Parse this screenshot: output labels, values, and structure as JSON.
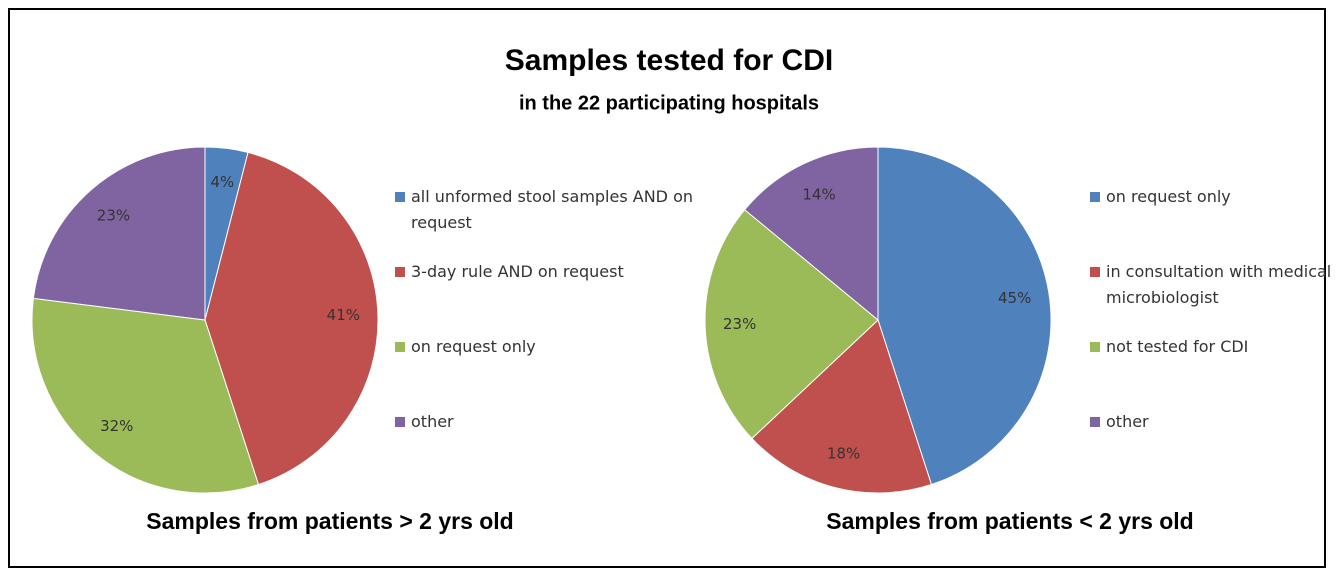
{
  "title": "Samples tested for CDI",
  "subtitle": "in the 22 participating hospitals",
  "chart_data": [
    {
      "type": "pie",
      "title": "Samples from patients > 2 yrs old",
      "categories": [
        "all unformed stool samples AND on request",
        "3-day rule AND on request",
        "on request only",
        "other"
      ],
      "values": [
        4,
        41,
        32,
        23
      ],
      "value_labels": [
        "4%",
        "41%",
        "32%",
        "23%"
      ],
      "colors": [
        "#4f81bd",
        "#c0504d",
        "#9bbb59",
        "#8064a2"
      ],
      "legend": "right"
    },
    {
      "type": "pie",
      "title": "Samples from patients < 2 yrs old",
      "categories": [
        "on request only",
        "in consultation with medical microbiologist",
        "not tested for CDI",
        "other"
      ],
      "values": [
        45,
        18,
        23,
        14
      ],
      "value_labels": [
        "45%",
        "18%",
        "23%",
        "14%"
      ],
      "colors": [
        "#4f81bd",
        "#c0504d",
        "#9bbb59",
        "#8064a2"
      ],
      "legend": "right"
    }
  ]
}
